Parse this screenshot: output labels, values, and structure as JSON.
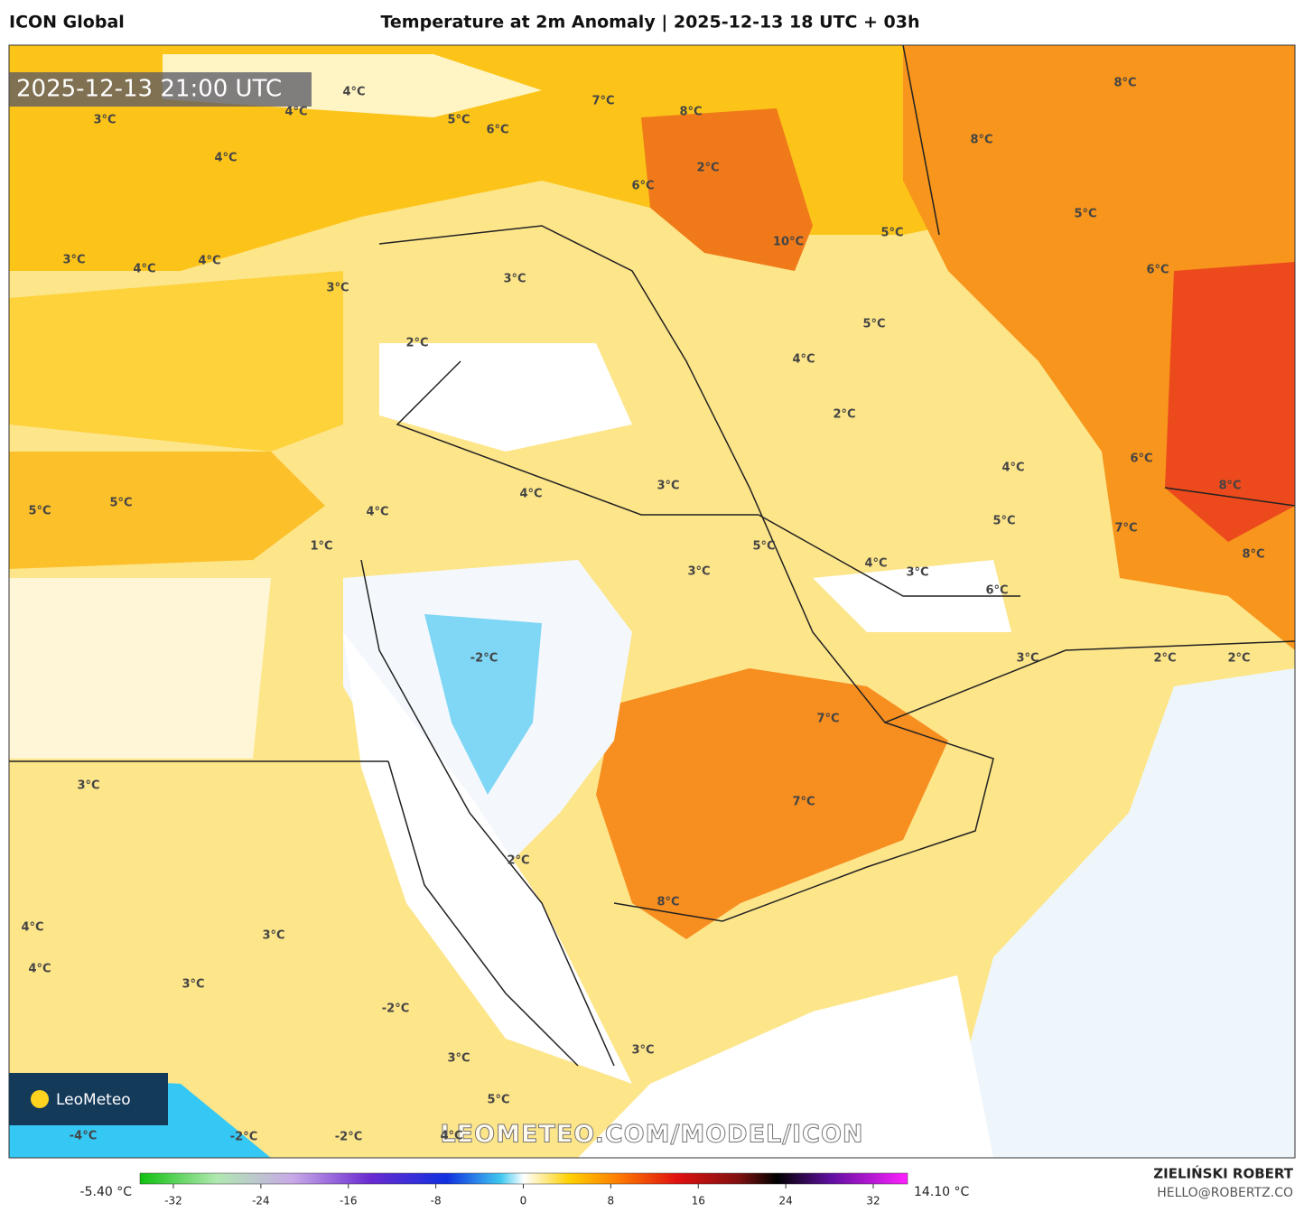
{
  "header": {
    "model": "ICON Global",
    "title": "Temperature at 2m Anomaly | 2025-12-13 18 UTC + 03h"
  },
  "map": {
    "timestamp": "2025-12-13 21:00 UTC",
    "watermark": "LEOMETEO.COM/MODEL/ICON",
    "logo": "LeoMeteo",
    "labels": [
      "4°C",
      "4°C",
      "3°C",
      "5°C",
      "6°C",
      "7°C",
      "8°C",
      "2°C",
      "6°C",
      "4°C",
      "3°C",
      "4°C",
      "4°C",
      "3°C",
      "3°C",
      "10°C",
      "5°C",
      "8°C",
      "8°C",
      "5°C",
      "6°C",
      "5°C",
      "2°C",
      "4°C",
      "2°C",
      "4°C",
      "6°C",
      "8°C",
      "5°C",
      "5°C",
      "4°C",
      "3°C",
      "4°C",
      "1°C",
      "5°C",
      "5°C",
      "7°C",
      "8°C",
      "3°C",
      "4°C",
      "3°C",
      "6°C",
      "-2°C",
      "2°C",
      "2°C",
      "3°C",
      "7°C",
      "7°C",
      "3°C",
      "2°C",
      "8°C",
      "4°C",
      "4°C",
      "3°C",
      "3°C",
      "-2°C",
      "3°C",
      "3°C",
      "5°C",
      "-4°C",
      "-2°C",
      "-2°C",
      "4°C"
    ]
  },
  "colorbar": {
    "min_label": "-5.40 °C",
    "max_label": "14.10 °C",
    "ticks": [
      -32,
      -24,
      -16,
      -8,
      0,
      8,
      16,
      24,
      32
    ]
  },
  "footer": {
    "author": "ZIELIŃSKI ROBERT",
    "email": "HELLO@ROBERTZ.CO"
  }
}
